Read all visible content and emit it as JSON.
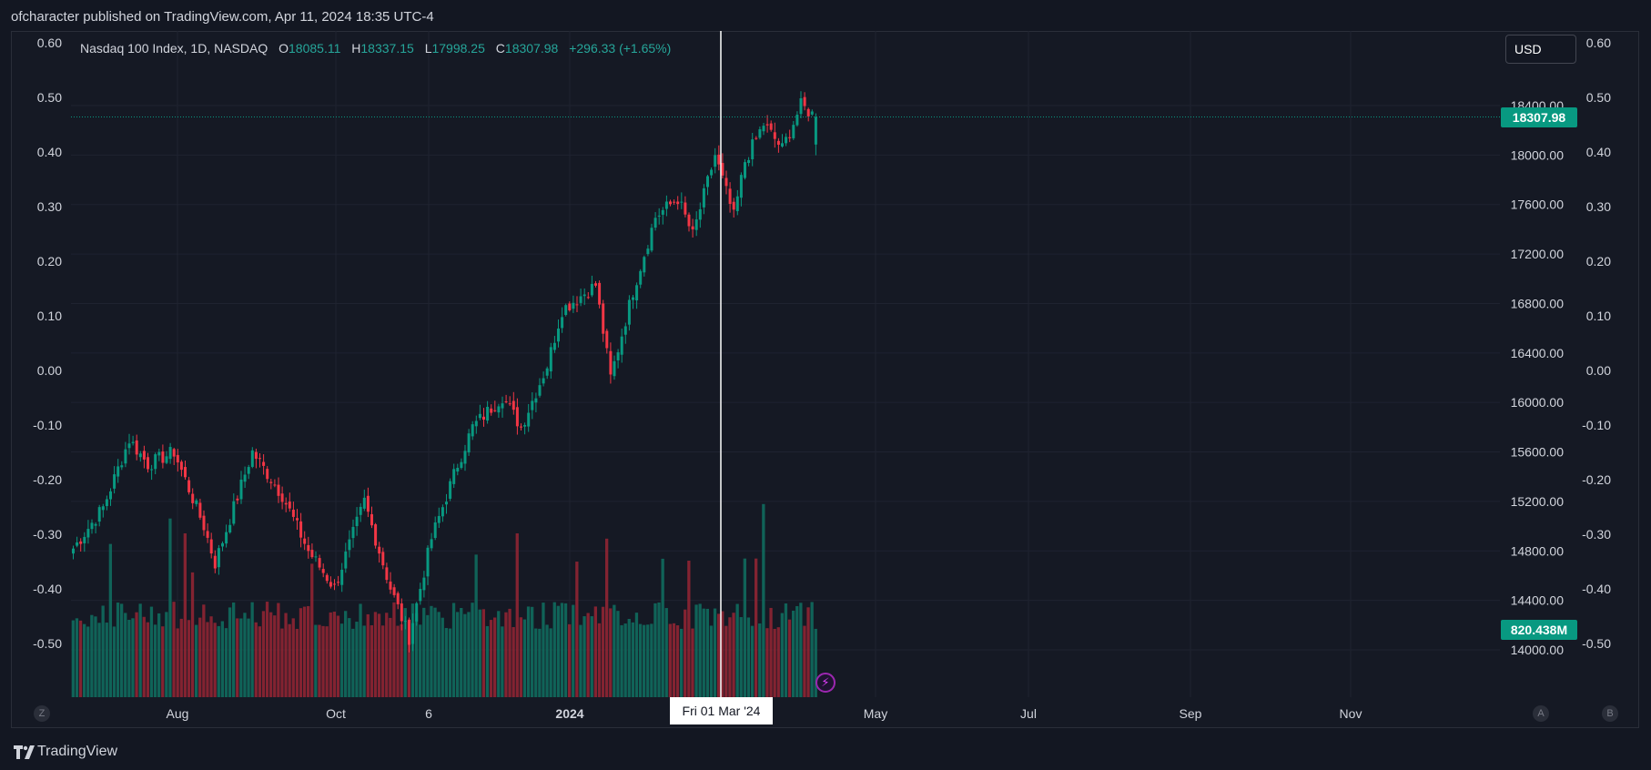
{
  "header": {
    "publish_text": "ofcharacter published on TradingView.com, Apr 11, 2024 18:35 UTC-4"
  },
  "legend": {
    "symbol": "Nasdaq 100 Index, 1D, NASDAQ",
    "open_label": "O",
    "open": "18085.11",
    "high_label": "H",
    "high": "18337.15",
    "low_label": "L",
    "low": "17998.25",
    "close_label": "C",
    "close": "18307.98",
    "change": "+296.33 (+1.65%)"
  },
  "currency_button": "USD",
  "last_price_badge": "18307.98",
  "volume_badge": "820.438M",
  "crosshair_date": "Fri 01 Mar '24",
  "corner_buttons": {
    "left": "Z",
    "a": "A",
    "b": "B"
  },
  "footer": {
    "logo_text": "TradingView"
  },
  "colors": {
    "up": "#089981",
    "down": "#f23645",
    "volume_up": "#0f6b5e",
    "volume_down": "#8f2533",
    "background": "#151924",
    "grid": "#1f2330",
    "text": "#d1d4dc"
  },
  "icons": [
    "lightning-icon",
    "tradingview-logo-icon"
  ],
  "chart_data": {
    "type": "candlestick",
    "title": "Nasdaq 100 Index, 1D, NASDAQ",
    "price_axis": {
      "ticks": [
        "18400.00",
        "18000.00",
        "17600.00",
        "17200.00",
        "16800.00",
        "16400.00",
        "16000.00",
        "15600.00",
        "15200.00",
        "14800.00",
        "14400.00",
        "14000.00"
      ],
      "range": [
        13900,
        18800
      ]
    },
    "overlay_axis": {
      "ticks": [
        "0.60",
        "0.50",
        "0.40",
        "0.30",
        "0.20",
        "0.10",
        "0.00",
        "-0.10",
        "-0.20",
        "-0.30",
        "-0.40",
        "-0.50"
      ],
      "range": [
        -0.6,
        0.6
      ]
    },
    "time_axis": {
      "ticks": [
        "Aug",
        "Oct",
        "6",
        "2024",
        "May",
        "Jul",
        "Sep",
        "Nov"
      ]
    },
    "candle_count": 200,
    "keypoints": [
      {
        "i": 0,
        "c": 14820
      },
      {
        "i": 8,
        "c": 15150
      },
      {
        "i": 15,
        "c": 15700
      },
      {
        "i": 20,
        "c": 15500
      },
      {
        "i": 27,
        "c": 15600
      },
      {
        "i": 35,
        "c": 15000
      },
      {
        "i": 38,
        "c": 14700
      },
      {
        "i": 48,
        "c": 15600
      },
      {
        "i": 56,
        "c": 15250
      },
      {
        "i": 63,
        "c": 14800
      },
      {
        "i": 70,
        "c": 14500
      },
      {
        "i": 78,
        "c": 15200
      },
      {
        "i": 85,
        "c": 14500
      },
      {
        "i": 90,
        "c": 14100
      },
      {
        "i": 96,
        "c": 14900
      },
      {
        "i": 103,
        "c": 15500
      },
      {
        "i": 107,
        "c": 15800
      },
      {
        "i": 115,
        "c": 16050
      },
      {
        "i": 120,
        "c": 15800
      },
      {
        "i": 127,
        "c": 16300
      },
      {
        "i": 131,
        "c": 16750
      },
      {
        "i": 140,
        "c": 16950
      },
      {
        "i": 144,
        "c": 16200
      },
      {
        "i": 150,
        "c": 16900
      },
      {
        "i": 156,
        "c": 17500
      },
      {
        "i": 162,
        "c": 17650
      },
      {
        "i": 166,
        "c": 17350
      },
      {
        "i": 172,
        "c": 18000
      },
      {
        "i": 177,
        "c": 17500
      },
      {
        "i": 180,
        "c": 17950
      },
      {
        "i": 185,
        "c": 18250
      },
      {
        "i": 190,
        "c": 18050
      },
      {
        "i": 195,
        "c": 18400
      },
      {
        "i": 199,
        "c": 18307.98
      }
    ],
    "last": {
      "open": 18085.11,
      "high": 18337.15,
      "low": 17998.25,
      "close": 18307.98
    },
    "last_volume": "820.438M"
  }
}
